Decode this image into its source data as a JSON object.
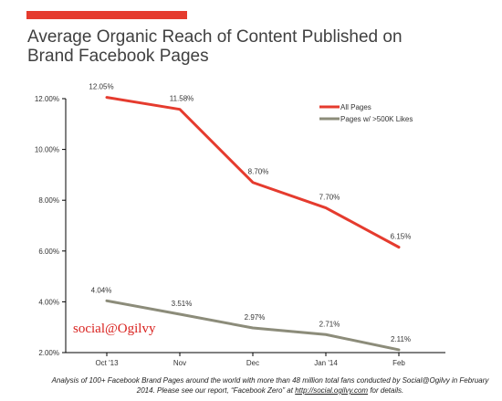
{
  "colors": {
    "accent": "#e53b2e",
    "title": "#404040",
    "all_pages": "#e53b2e",
    "large_pages": "#8c8c7a",
    "brand": "#d9221f",
    "axis": "#000000",
    "text": "#333333"
  },
  "header": {
    "title_line1": "Average Organic Reach of Content Published on",
    "title_line2": "Brand Facebook Pages"
  },
  "brand_mark": "social@Ogilvy",
  "footnote": {
    "text_before": "Analysis of 100+ Facebook Brand Pages around the world with more than 48 million total fans conducted by Social@Ogilvy in February 2014. Please see our report, “Facebook Zero” at ",
    "link": "http://social.ogilvy.com",
    "text_after": " for details."
  },
  "chart_data": {
    "type": "line",
    "title": "Average Organic Reach of Content Published on Brand Facebook Pages",
    "xlabel": "",
    "ylabel": "",
    "categories": [
      "Oct '13",
      "Nov",
      "Dec",
      "Jan '14",
      "Feb"
    ],
    "ylim": [
      2,
      12
    ],
    "y_ticks": [
      "2.00%",
      "4.00%",
      "6.00%",
      "8.00%",
      "10.00%",
      "12.00%"
    ],
    "y_tick_values": [
      2,
      4,
      6,
      8,
      10,
      12
    ],
    "grid": false,
    "legend_position": "top-right",
    "series": [
      {
        "name": "All Pages",
        "values": [
          12.05,
          11.58,
          8.7,
          7.7,
          6.15
        ],
        "labels": [
          "12.05%",
          "11.58%",
          "8.70%",
          "7.70%",
          "6.15%"
        ]
      },
      {
        "name": "Pages w/ >500K Likes",
        "values": [
          4.04,
          3.51,
          2.97,
          2.71,
          2.11
        ],
        "labels": [
          "4.04%",
          "3.51%",
          "2.97%",
          "2.71%",
          "2.11%"
        ]
      }
    ]
  }
}
